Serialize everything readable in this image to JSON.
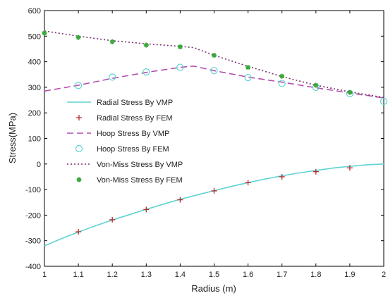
{
  "chart_data": {
    "type": "line",
    "xlabel": "Radius (m)",
    "ylabel": "Stress(MPa)",
    "xlim": [
      1,
      2
    ],
    "ylim": [
      -400,
      600
    ],
    "xticks": [
      "1",
      "1.1",
      "1.2",
      "1.3",
      "1.4",
      "1.5",
      "1.6",
      "1.7",
      "1.8",
      "1.9",
      "2"
    ],
    "yticks": [
      "-400",
      "-300",
      "-200",
      "-100",
      "0",
      "100",
      "200",
      "300",
      "400",
      "500",
      "600"
    ],
    "grid": false,
    "legend_position": "middle-left",
    "series": [
      {
        "name": "Radial Stress By VMP",
        "style": "line",
        "dash": "solid",
        "color": "#5fd3d3",
        "x": [
          1.0,
          1.05,
          1.1,
          1.15,
          1.2,
          1.25,
          1.3,
          1.35,
          1.4,
          1.45,
          1.5,
          1.55,
          1.6,
          1.65,
          1.7,
          1.75,
          1.8,
          1.85,
          1.9,
          1.95,
          2.0
        ],
        "y": [
          -320,
          -292,
          -266,
          -242,
          -219,
          -198,
          -177,
          -157,
          -138,
          -121,
          -104,
          -88,
          -73,
          -59,
          -46,
          -35,
          -25,
          -16,
          -9,
          -3,
          0
        ]
      },
      {
        "name": "Radial Stress By FEM",
        "style": "marker",
        "marker": "plus",
        "color": "#b03030",
        "x": [
          1.1,
          1.2,
          1.3,
          1.4,
          1.5,
          1.6,
          1.7,
          1.8,
          1.9
        ],
        "y": [
          -265,
          -218,
          -178,
          -140,
          -105,
          -73,
          -50,
          -30,
          -15
        ]
      },
      {
        "name": "Hoop Stress By VMP",
        "style": "line",
        "dash": "dashed",
        "color": "#b04fb0",
        "x": [
          1.0,
          1.1,
          1.2,
          1.3,
          1.4,
          1.44,
          1.5,
          1.6,
          1.7,
          1.8,
          1.9,
          2.0
        ],
        "y": [
          285,
          308,
          335,
          358,
          378,
          383,
          365,
          340,
          320,
          298,
          278,
          258
        ]
      },
      {
        "name": "Hoop Stress By FEM",
        "style": "marker",
        "marker": "circle",
        "color": "#5fd3d3",
        "x": [
          1.1,
          1.2,
          1.3,
          1.4,
          1.5,
          1.6,
          1.7,
          1.8,
          1.9,
          2.0
        ],
        "y": [
          307,
          340,
          360,
          378,
          365,
          338,
          315,
          300,
          275,
          245
        ]
      },
      {
        "name": "Von-Miss Stress By VMP",
        "style": "line",
        "dash": "dotted",
        "color": "#7a3070",
        "x": [
          1.0,
          1.1,
          1.2,
          1.3,
          1.4,
          1.44,
          1.5,
          1.6,
          1.7,
          1.8,
          1.9,
          2.0
        ],
        "y": [
          520,
          500,
          482,
          470,
          460,
          455,
          425,
          382,
          342,
          308,
          282,
          260
        ]
      },
      {
        "name": "Von-Miss Stress By FEM",
        "style": "marker",
        "marker": "star",
        "color": "#3aa83a",
        "x": [
          1.0,
          1.1,
          1.2,
          1.3,
          1.4,
          1.5,
          1.6,
          1.7,
          1.8,
          1.9
        ],
        "y": [
          512,
          495,
          478,
          465,
          458,
          425,
          378,
          343,
          308,
          280
        ]
      }
    ]
  }
}
